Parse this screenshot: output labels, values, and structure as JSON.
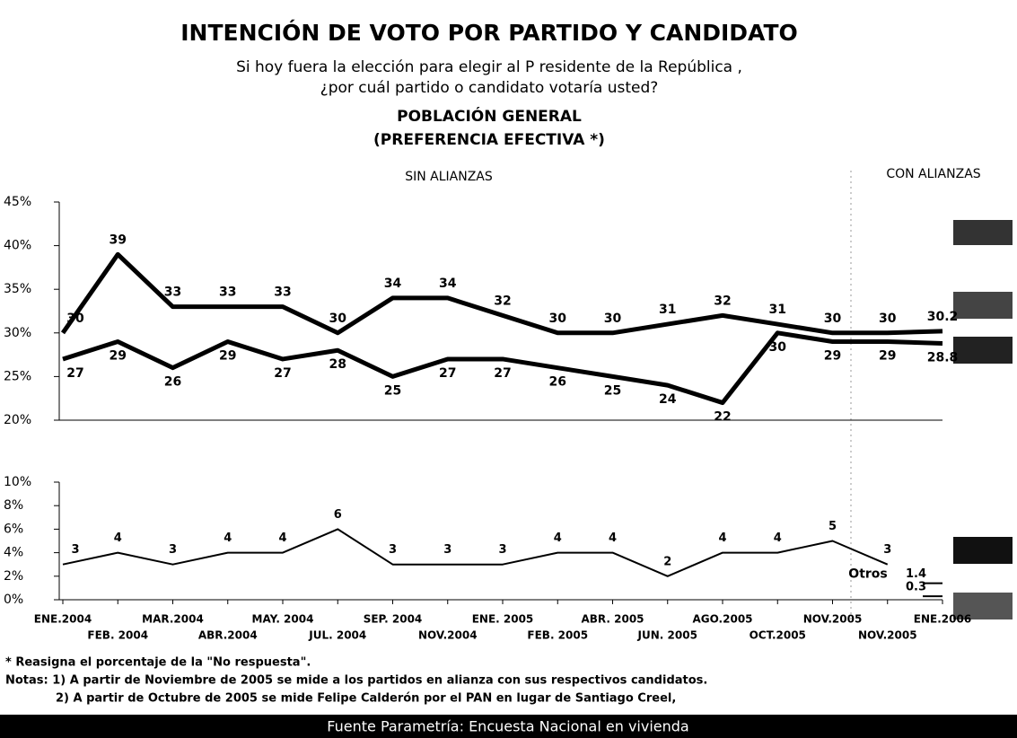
{
  "header": {
    "title": "INTENCIÓN DE VOTO POR PARTIDO Y CANDIDATO",
    "subtitle": [
      "Si hoy fuera la elección para elegir al P   residente de la República  ,",
      "¿por cuál  partido o candidato   votaría usted?"
    ],
    "population": "POBLACIÓN GENERAL",
    "measure": "(PREFERENCIA EFECTIVA  *)"
  },
  "chart_data": [
    {
      "type": "line",
      "annotations": [
        "SIN ALIANZAS",
        "CON ALIANZAS"
      ],
      "ylim": [
        20,
        45
      ],
      "yticks": [
        {
          "value": 20,
          "label": "20%"
        },
        {
          "value": 25,
          "label": "25%"
        },
        {
          "value": 30,
          "label": "30%"
        },
        {
          "value": 35,
          "label": "35%"
        },
        {
          "value": 40,
          "label": "40%"
        },
        {
          "value": 45,
          "label": "45%"
        }
      ],
      "series": [
        {
          "color": "#000000",
          "values": [
            30,
            39,
            33,
            33,
            33,
            30,
            34,
            34,
            32,
            30,
            30,
            31,
            32,
            31,
            30,
            30,
            30.2
          ]
        },
        {
          "color": "#000000",
          "values": [
            27,
            29,
            26,
            29,
            27,
            28,
            25,
            27,
            27,
            26,
            25,
            24,
            22,
            30,
            29,
            29,
            28.8
          ]
        }
      ]
    },
    {
      "type": "line",
      "categories": [
        "ENE.2004",
        "FEB. 2004",
        "MAR.2004",
        "ABR.2004",
        "MAY. 2004",
        "JUL. 2004",
        "SEP. 2004",
        "NOV.2004",
        "ENE. 2005",
        "FEB. 2005",
        "ABR. 2005",
        "JUN. 2005",
        "AGO.2005",
        "OCT.2005",
        "NOV.2005",
        "NOV.2005",
        "ENE.2006"
      ],
      "ylim": [
        0,
        10
      ],
      "yticks": [
        {
          "value": 0,
          "label": "0%"
        },
        {
          "value": 2,
          "label": "2%"
        },
        {
          "value": 4,
          "label": "4%"
        },
        {
          "value": 6,
          "label": "6%"
        },
        {
          "value": 8,
          "label": "8%"
        },
        {
          "value": 10,
          "label": "10%"
        }
      ],
      "series": [
        {
          "name": "Otros",
          "color": "#000000",
          "values": [
            3,
            4,
            3,
            4,
            4,
            6,
            3,
            3,
            3,
            4,
            4,
            2,
            4,
            4,
            5,
            3,
            null
          ]
        },
        {
          "color": "#000000",
          "values": [
            null,
            null,
            null,
            null,
            null,
            null,
            null,
            null,
            null,
            null,
            null,
            null,
            null,
            null,
            null,
            null,
            1.4
          ]
        },
        {
          "color": "#000000",
          "values": [
            null,
            null,
            null,
            null,
            null,
            null,
            null,
            null,
            null,
            null,
            null,
            null,
            null,
            null,
            null,
            null,
            0.3
          ]
        }
      ]
    }
  ],
  "notes": [
    "* Reasigna el porcentaje de la \"No respuesta\".",
    "Notas: 1) A partir de Noviembre de 2005  se mide a los partidos en alianza con sus respectivos candidatos.",
    "2) A partir de Octubre de 2005 se mide Felipe Calderón por el PAN en lugar de Santiago Creel,"
  ],
  "source": "Fuente Parametría: Encuesta Nacional en vivienda"
}
